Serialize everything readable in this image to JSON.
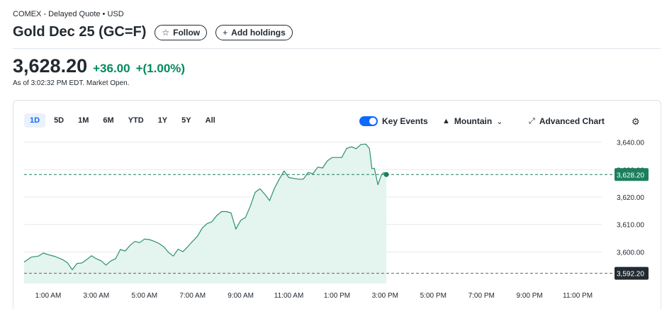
{
  "header": {
    "exchange": "COMEX - Delayed Quote • USD",
    "title": "Gold Dec 25 (GC=F)",
    "follow_label": "Follow",
    "add_holdings_label": "Add holdings"
  },
  "quote": {
    "price": "3,628.20",
    "change": "+36.00",
    "change_pct": "+(1.00%)",
    "as_of": "As of 3:02:32 PM EDT. Market Open."
  },
  "chart_toolbar": {
    "ranges": [
      "1D",
      "5D",
      "1M",
      "6M",
      "YTD",
      "1Y",
      "5Y",
      "All"
    ],
    "active_range": "1D",
    "key_events_label": "Key Events",
    "key_events_on": true,
    "chart_type_label": "Mountain",
    "advanced_chart_label": "Advanced Chart"
  },
  "icons": {
    "follow": "star-icon",
    "add_holdings": "plus-icon",
    "chart_type": "mountain-icon",
    "dropdown": "chevron-down-icon",
    "advanced_chart": "expand-arrows-icon",
    "settings": "gear-icon"
  },
  "colors": {
    "up": "#008a5c",
    "line": "#2b8f72",
    "fill": "#e4f4ee",
    "accent": "#0f69ff",
    "price_tag": "#1b7f5d",
    "prev_close_tag": "#232a31"
  },
  "chart_data": {
    "type": "area",
    "xlabel": "",
    "ylabel": "",
    "x_ticks": [
      "1:00 AM",
      "3:00 AM",
      "5:00 AM",
      "7:00 AM",
      "9:00 AM",
      "11:00 AM",
      "1:00 PM",
      "3:00 PM",
      "5:00 PM",
      "7:00 PM",
      "9:00 PM",
      "11:00 PM"
    ],
    "y_ticks": [
      "3,640.00",
      "3,630.00",
      "3,620.00",
      "3,610.00",
      "3,600.00"
    ],
    "y_tick_values": [
      3640,
      3630,
      3620,
      3610,
      3600
    ],
    "ylim": [
      3588.5,
      3643.5
    ],
    "x_range_hours": [
      0,
      24
    ],
    "current_price_label": "3,628.20",
    "current_price": 3628.2,
    "previous_close_label": "3,592.20",
    "previous_close": 3592.2,
    "series": [
      {
        "points": [
          [
            0.0,
            3596.3
          ],
          [
            0.3,
            3598.1
          ],
          [
            0.6,
            3598.5
          ],
          [
            0.8,
            3599.6
          ],
          [
            1.0,
            3599.0
          ],
          [
            1.3,
            3598.3
          ],
          [
            1.6,
            3597.2
          ],
          [
            1.8,
            3596.1
          ],
          [
            2.0,
            3593.5
          ],
          [
            2.2,
            3595.8
          ],
          [
            2.4,
            3596.0
          ],
          [
            2.6,
            3597.2
          ],
          [
            2.8,
            3598.6
          ],
          [
            3.0,
            3597.5
          ],
          [
            3.2,
            3596.8
          ],
          [
            3.4,
            3595.2
          ],
          [
            3.6,
            3596.7
          ],
          [
            3.8,
            3597.5
          ],
          [
            4.0,
            3600.9
          ],
          [
            4.2,
            3600.3
          ],
          [
            4.4,
            3602.4
          ],
          [
            4.6,
            3603.8
          ],
          [
            4.8,
            3603.4
          ],
          [
            5.0,
            3604.7
          ],
          [
            5.2,
            3604.5
          ],
          [
            5.4,
            3603.9
          ],
          [
            5.6,
            3603.1
          ],
          [
            5.8,
            3601.9
          ],
          [
            6.0,
            3599.8
          ],
          [
            6.2,
            3598.5
          ],
          [
            6.4,
            3601.0
          ],
          [
            6.6,
            3600.1
          ],
          [
            6.8,
            3601.9
          ],
          [
            7.0,
            3603.9
          ],
          [
            7.2,
            3605.7
          ],
          [
            7.4,
            3608.7
          ],
          [
            7.6,
            3610.3
          ],
          [
            7.8,
            3611.0
          ],
          [
            8.0,
            3613.2
          ],
          [
            8.2,
            3614.7
          ],
          [
            8.4,
            3614.7
          ],
          [
            8.6,
            3614.2
          ],
          [
            8.8,
            3608.3
          ],
          [
            9.0,
            3611.5
          ],
          [
            9.2,
            3612.6
          ],
          [
            9.4,
            3616.7
          ],
          [
            9.6,
            3621.7
          ],
          [
            9.8,
            3623.0
          ],
          [
            10.0,
            3621.0
          ],
          [
            10.2,
            3618.7
          ],
          [
            10.4,
            3623.2
          ],
          [
            10.6,
            3626.5
          ],
          [
            10.8,
            3629.5
          ],
          [
            11.0,
            3627.1
          ],
          [
            11.2,
            3626.8
          ],
          [
            11.4,
            3626.5
          ],
          [
            11.6,
            3626.5
          ],
          [
            11.8,
            3628.9
          ],
          [
            12.0,
            3628.5
          ],
          [
            12.2,
            3630.9
          ],
          [
            12.4,
            3630.6
          ],
          [
            12.6,
            3633.2
          ],
          [
            12.8,
            3634.4
          ],
          [
            13.0,
            3634.4
          ],
          [
            13.2,
            3634.4
          ],
          [
            13.4,
            3637.7
          ],
          [
            13.6,
            3638.3
          ],
          [
            13.8,
            3637.6
          ],
          [
            14.0,
            3639.2
          ],
          [
            14.2,
            3639.3
          ],
          [
            14.35,
            3637.6
          ],
          [
            14.45,
            3630.3
          ],
          [
            14.55,
            3630.5
          ],
          [
            14.7,
            3624.5
          ],
          [
            14.85,
            3628.2
          ],
          [
            14.95,
            3629.0
          ],
          [
            15.05,
            3628.2
          ]
        ]
      }
    ],
    "grid": true,
    "legend": "none"
  }
}
